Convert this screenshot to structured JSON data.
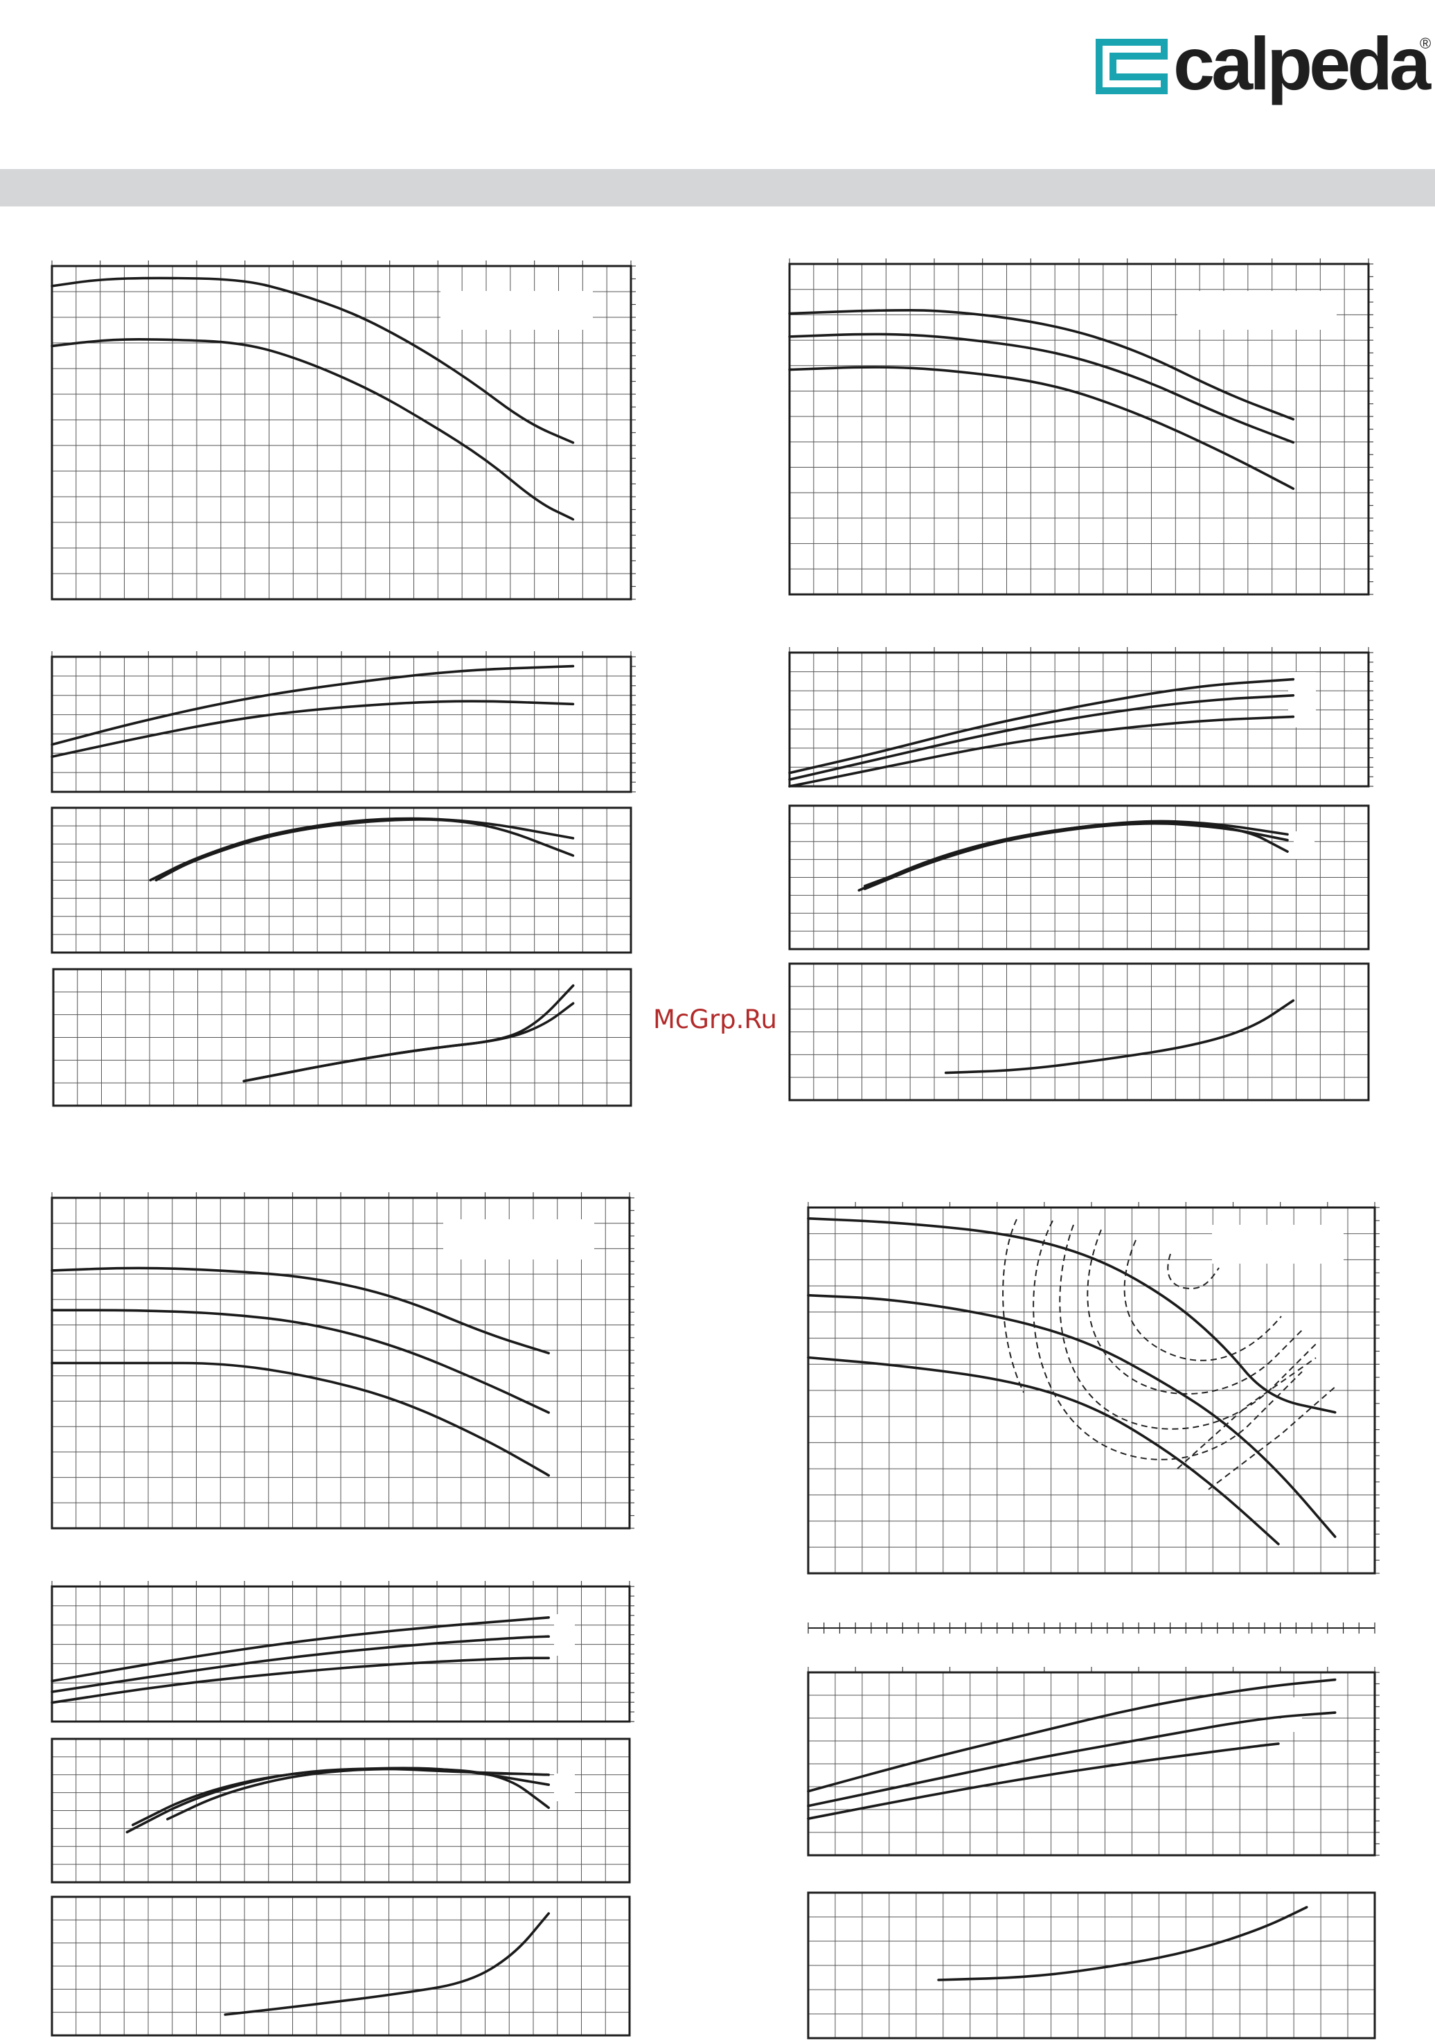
{
  "brand": {
    "name": "calpeda",
    "registered": "®",
    "colors": {
      "accent": "#1aa3b0",
      "text": "#1f1f1f"
    }
  },
  "watermark": "McGrp.Ru",
  "header_band_color": "#d5d6d8",
  "chart_data": [
    {
      "type": "line",
      "panel": "top-left head (H) vs flow (Q)",
      "ylim": [
        0,
        100
      ],
      "x": [
        0,
        100
      ],
      "series": [
        {
          "values": [
            [
              0,
              94
            ],
            [
              8,
              96
            ],
            [
              18,
              96.5
            ],
            [
              33,
              96
            ],
            [
              42,
              92
            ],
            [
              52,
              86
            ],
            [
              62,
              77
            ],
            [
              72,
              66
            ],
            [
              82,
              53
            ],
            [
              90,
              47
            ]
          ]
        },
        {
          "values": [
            [
              0,
              76
            ],
            [
              10,
              78
            ],
            [
              20,
              78
            ],
            [
              33,
              77
            ],
            [
              43,
              72
            ],
            [
              55,
              63
            ],
            [
              65,
              53
            ],
            [
              75,
              42
            ],
            [
              84,
              29
            ],
            [
              90,
              24
            ]
          ]
        }
      ]
    },
    {
      "type": "line",
      "panel": "top-left power (P)",
      "ylim": [
        0,
        100
      ],
      "x": [
        0,
        100
      ],
      "series": [
        {
          "values": [
            [
              0,
              35
            ],
            [
              15,
              52
            ],
            [
              33,
              69
            ],
            [
              50,
              80
            ],
            [
              70,
              90
            ],
            [
              90,
              93
            ]
          ]
        },
        {
          "values": [
            [
              0,
              26
            ],
            [
              15,
              40
            ],
            [
              33,
              55
            ],
            [
              50,
              63
            ],
            [
              70,
              68
            ],
            [
              90,
              65
            ]
          ]
        }
      ]
    },
    {
      "type": "line",
      "panel": "top-left efficiency",
      "ylim": [
        0,
        100
      ],
      "x": [
        0,
        100
      ],
      "series": [
        {
          "values": [
            [
              17,
              50
            ],
            [
              25,
              66
            ],
            [
              38,
              83
            ],
            [
              55,
              93
            ],
            [
              72,
              92
            ],
            [
              90,
              79
            ]
          ]
        },
        {
          "values": [
            [
              18,
              50
            ],
            [
              25,
              65
            ],
            [
              40,
              84
            ],
            [
              60,
              93
            ],
            [
              75,
              90
            ],
            [
              90,
              67
            ]
          ]
        }
      ]
    },
    {
      "type": "line",
      "panel": "top-left NPSH",
      "ylim": [
        0,
        100
      ],
      "x": [
        0,
        100
      ],
      "series": [
        {
          "values": [
            [
              33,
              18
            ],
            [
              50,
              32
            ],
            [
              65,
              42
            ],
            [
              78,
              48
            ],
            [
              84,
              61
            ],
            [
              90,
              88
            ]
          ]
        },
        {
          "values": [
            [
              33,
              18
            ],
            [
              50,
              32
            ],
            [
              65,
              42
            ],
            [
              78,
              48
            ],
            [
              85,
              59
            ],
            [
              90,
              75
            ]
          ]
        }
      ]
    },
    {
      "type": "line",
      "panel": "top-right head (H) vs flow (Q)",
      "ylim": [
        0,
        100
      ],
      "x": [
        0,
        100
      ],
      "series": [
        {
          "values": [
            [
              0,
              85
            ],
            [
              15,
              86
            ],
            [
              27,
              86
            ],
            [
              45,
              82
            ],
            [
              60,
              74
            ],
            [
              75,
              61
            ],
            [
              87,
              53
            ]
          ]
        },
        {
          "values": [
            [
              0,
              78
            ],
            [
              15,
              79
            ],
            [
              27,
              78
            ],
            [
              45,
              74
            ],
            [
              60,
              66
            ],
            [
              75,
              54
            ],
            [
              87,
              46
            ]
          ]
        },
        {
          "values": [
            [
              0,
              68
            ],
            [
              15,
              69
            ],
            [
              27,
              68
            ],
            [
              45,
              64
            ],
            [
              60,
              55
            ],
            [
              75,
              43
            ],
            [
              87,
              32
            ]
          ]
        }
      ]
    },
    {
      "type": "line",
      "panel": "top-right power (P)",
      "ylim": [
        0,
        100
      ],
      "x": [
        0,
        100
      ],
      "series": [
        {
          "values": [
            [
              0,
              10
            ],
            [
              15,
              25
            ],
            [
              33,
              45
            ],
            [
              50,
              60
            ],
            [
              70,
              75
            ],
            [
              87,
              80
            ]
          ]
        },
        {
          "values": [
            [
              0,
              5
            ],
            [
              15,
              20
            ],
            [
              33,
              38
            ],
            [
              50,
              52
            ],
            [
              70,
              64
            ],
            [
              87,
              68
            ]
          ]
        },
        {
          "values": [
            [
              0,
              0
            ],
            [
              15,
              13
            ],
            [
              33,
              29
            ],
            [
              50,
              40
            ],
            [
              70,
              49
            ],
            [
              87,
              52
            ]
          ]
        }
      ]
    },
    {
      "type": "line",
      "panel": "top-right efficiency",
      "ylim": [
        0,
        100
      ],
      "x": [
        0,
        100
      ],
      "series": [
        {
          "values": [
            [
              12,
              41
            ],
            [
              25,
              64
            ],
            [
              40,
              80
            ],
            [
              60,
              90
            ],
            [
              73,
              88
            ],
            [
              86,
              80
            ]
          ]
        },
        {
          "values": [
            [
              13,
              42
            ],
            [
              25,
              62
            ],
            [
              40,
              79
            ],
            [
              60,
              89
            ],
            [
              75,
              85
            ],
            [
              86,
              76
            ]
          ]
        },
        {
          "values": [
            [
              13,
              44
            ],
            [
              25,
              62
            ],
            [
              40,
              80
            ],
            [
              60,
              90
            ],
            [
              78,
              85
            ],
            [
              86,
              68
            ]
          ]
        }
      ]
    },
    {
      "type": "line",
      "panel": "top-right NPSH",
      "ylim": [
        0,
        100
      ],
      "x": [
        0,
        100
      ],
      "series": [
        {
          "values": [
            [
              27,
              20
            ],
            [
              40,
              22
            ],
            [
              55,
              30
            ],
            [
              70,
              40
            ],
            [
              80,
              53
            ],
            [
              87,
              73
            ]
          ]
        }
      ]
    },
    {
      "type": "line",
      "panel": "bottom-left head (H) vs flow (Q)",
      "ylim": [
        0,
        100
      ],
      "x": [
        0,
        100
      ],
      "series": [
        {
          "values": [
            [
              0,
              78
            ],
            [
              15,
              79
            ],
            [
              30,
              78
            ],
            [
              45,
              76
            ],
            [
              60,
              70
            ],
            [
              75,
              59
            ],
            [
              86,
              53
            ]
          ]
        },
        {
          "values": [
            [
              0,
              66
            ],
            [
              15,
              66
            ],
            [
              30,
              65
            ],
            [
              45,
              62
            ],
            [
              60,
              55
            ],
            [
              75,
              44
            ],
            [
              86,
              35
            ]
          ]
        },
        {
          "values": [
            [
              0,
              50
            ],
            [
              15,
              50
            ],
            [
              30,
              50
            ],
            [
              45,
              46
            ],
            [
              60,
              39
            ],
            [
              75,
              27
            ],
            [
              86,
              16
            ]
          ]
        }
      ]
    },
    {
      "type": "line",
      "panel": "bottom-left power (P)",
      "ylim": [
        0,
        100
      ],
      "x": [
        0,
        100
      ],
      "series": [
        {
          "values": [
            [
              0,
              30
            ],
            [
              20,
              45
            ],
            [
              40,
              58
            ],
            [
              60,
              68
            ],
            [
              80,
              75
            ],
            [
              86,
              77
            ]
          ]
        },
        {
          "values": [
            [
              0,
              22
            ],
            [
              20,
              35
            ],
            [
              40,
              47
            ],
            [
              60,
              56
            ],
            [
              80,
              62
            ],
            [
              86,
              63
            ]
          ]
        },
        {
          "values": [
            [
              0,
              14
            ],
            [
              20,
              27
            ],
            [
              40,
              36
            ],
            [
              60,
              43
            ],
            [
              80,
              47
            ],
            [
              86,
              47
            ]
          ]
        }
      ]
    },
    {
      "type": "line",
      "panel": "bottom-left efficiency",
      "ylim": [
        0,
        100
      ],
      "x": [
        0,
        100
      ],
      "series": [
        {
          "values": [
            [
              13,
              35
            ],
            [
              25,
              60
            ],
            [
              40,
              76
            ],
            [
              55,
              80
            ],
            [
              70,
              77
            ],
            [
              86,
              75
            ]
          ]
        },
        {
          "values": [
            [
              14,
              40
            ],
            [
              25,
              62
            ],
            [
              40,
              76
            ],
            [
              57,
              80
            ],
            [
              70,
              79
            ],
            [
              86,
              68
            ]
          ]
        },
        {
          "values": [
            [
              20,
              44
            ],
            [
              30,
              63
            ],
            [
              45,
              77
            ],
            [
              63,
              80
            ],
            [
              78,
              76
            ],
            [
              86,
              52
            ]
          ]
        }
      ]
    },
    {
      "type": "line",
      "panel": "bottom-left NPSH",
      "ylim": [
        0,
        100
      ],
      "x": [
        0,
        100
      ],
      "series": [
        {
          "values": [
            [
              30,
              15
            ],
            [
              45,
              22
            ],
            [
              60,
              30
            ],
            [
              72,
              38
            ],
            [
              80,
              58
            ],
            [
              86,
              88
            ]
          ]
        }
      ]
    },
    {
      "type": "line",
      "panel": "bottom-right head (H) vs flow (Q) with efficiency iso-curves",
      "ylim": [
        0,
        100
      ],
      "x": [
        0,
        100
      ],
      "series": [
        {
          "values": [
            [
              0,
              97
            ],
            [
              15,
              96
            ],
            [
              35,
              93
            ],
            [
              50,
              87
            ],
            [
              63,
              76
            ],
            [
              73,
              63
            ],
            [
              81,
              48
            ],
            [
              93,
              44
            ]
          ]
        },
        {
          "values": [
            [
              0,
              76
            ],
            [
              15,
              75
            ],
            [
              35,
              70
            ],
            [
              50,
              63
            ],
            [
              63,
              52
            ],
            [
              73,
              42
            ],
            [
              83,
              28
            ],
            [
              93,
              10
            ]
          ]
        },
        {
          "values": [
            [
              0,
              59
            ],
            [
              15,
              57
            ],
            [
              35,
              53
            ],
            [
              50,
              46
            ],
            [
              63,
              34
            ],
            [
              73,
              22
            ],
            [
              83,
              8
            ]
          ]
        }
      ]
    },
    {
      "type": "line",
      "panel": "bottom-right power (P)",
      "ylim": [
        0,
        100
      ],
      "x": [
        0,
        100
      ],
      "series": [
        {
          "values": [
            [
              0,
              35
            ],
            [
              20,
              52
            ],
            [
              40,
              67
            ],
            [
              60,
              82
            ],
            [
              80,
              92
            ],
            [
              93,
              96
            ]
          ]
        },
        {
          "values": [
            [
              0,
              27
            ],
            [
              20,
              40
            ],
            [
              40,
              53
            ],
            [
              60,
              64
            ],
            [
              80,
              75
            ],
            [
              93,
              78
            ]
          ]
        },
        {
          "values": [
            [
              0,
              20
            ],
            [
              20,
              32
            ],
            [
              40,
              43
            ],
            [
              60,
              52
            ],
            [
              80,
              60
            ],
            [
              83,
              61
            ]
          ]
        }
      ]
    },
    {
      "type": "line",
      "panel": "bottom-right NPSH",
      "ylim": [
        0,
        100
      ],
      "x": [
        0,
        100
      ],
      "series": [
        {
          "values": [
            [
              23,
              40
            ],
            [
              40,
              42
            ],
            [
              55,
              50
            ],
            [
              68,
              60
            ],
            [
              80,
              75
            ],
            [
              88,
              90
            ]
          ]
        }
      ]
    }
  ]
}
